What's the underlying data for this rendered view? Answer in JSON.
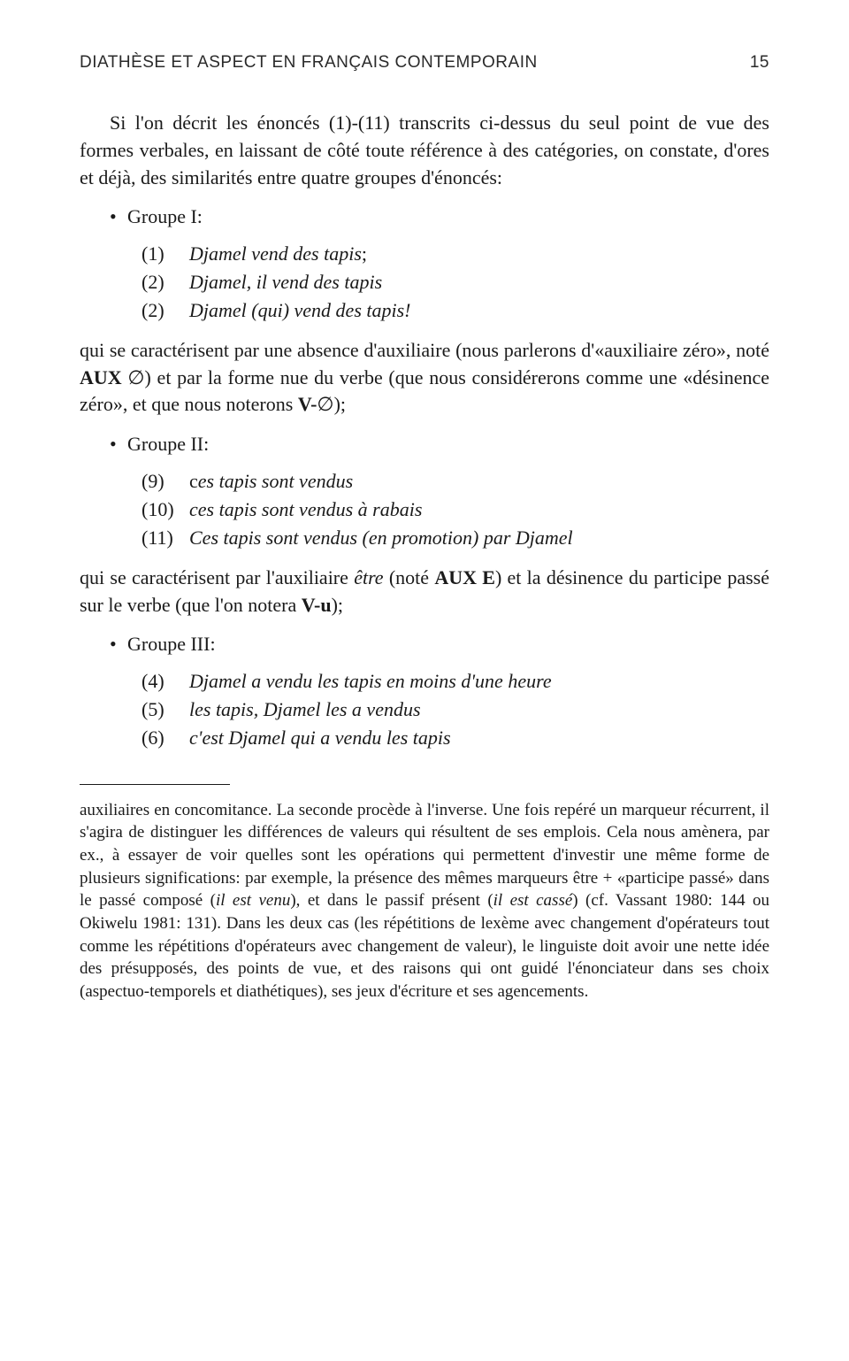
{
  "header": {
    "running_title": "DIATHÈSE ET ASPECT EN FRANÇAIS CONTEMPORAIN",
    "page_number": "15"
  },
  "para1a": "Si l'on décrit les énoncés (1)-(11) transcrits ci-dessus du seul point de vue des formes verbales, en laissant de côté toute référence à des catégories, on constate, d'ores et déjà, des similarités entre quatre groupes d'énoncés:",
  "bullets": {
    "g1": "Groupe I:",
    "g2": "Groupe II:",
    "g3": "Groupe III:"
  },
  "examples": {
    "g1": [
      {
        "n": "(1)",
        "t": "Djamel vend des tapis",
        "suffix": ";"
      },
      {
        "n": "(2)",
        "t": "Djamel, il vend des tapis",
        "suffix": ""
      },
      {
        "n": "(2)",
        "t": "Djamel (qui) vend des tapis!",
        "suffix": ""
      }
    ],
    "g2": [
      {
        "n": "(9)",
        "pre": "c",
        "t": "es tapis sont vendus"
      },
      {
        "n": "(10)",
        "t": "ces tapis sont vendus à rabais"
      },
      {
        "n": "(11)",
        "t": "Ces tapis sont vendus (en promotion) par Djamel"
      }
    ],
    "g3": [
      {
        "n": "(4)",
        "t": "Djamel a vendu les tapis en moins d'une heure"
      },
      {
        "n": "(5)",
        "t": "les tapis, Djamel les a vendus"
      },
      {
        "n": "(6)",
        "t": "c'est Djamel qui a vendu les tapis"
      }
    ]
  },
  "para2": {
    "a": "qui se caractérisent par une absence d'auxiliaire (nous parlerons d'«auxiliaire zéro», noté ",
    "b": "AUX",
    "c": " ∅) et par la forme nue du verbe (que nous considérerons comme une «désinence zéro», et que nous noterons ",
    "d": "V-",
    "e": "∅);"
  },
  "para3": {
    "a": "qui se caractérisent par l'auxiliaire ",
    "b": "être",
    "c": " (noté ",
    "d": "AUX E",
    "e": ") et la désinence du participe passé sur le verbe (que l'on notera ",
    "f": "V-u",
    "g": ");"
  },
  "footnote": {
    "a": "auxiliaires en concomitance. La seconde procède à l'inverse. Une fois repéré un marqueur récurrent, il s'agira de distinguer les différences de valeurs qui résultent de ses emplois. Cela nous amènera, par ex., à essayer de voir quelles sont les opérations qui permettent d'investir une même forme de plusieurs significations: par exemple, la présence des mêmes marqueurs être + «participe passé» dans le passé composé (",
    "b": "il est venu",
    "c": "), et dans le passif présent (",
    "d": "il est cassé",
    "e": ") (cf. Vassant 1980: 144 ou Okiwelu 1981: 131). Dans les deux cas (les répétitions de lexème avec changement d'opérateurs tout comme les répétitions d'opérateurs avec changement de valeur), le linguiste doit avoir une nette idée des présupposés, des points de vue, et des raisons qui ont guidé l'énonciateur dans ses choix (aspectuo-temporels et diathétiques), ses jeux d'écriture et ses agencements."
  }
}
